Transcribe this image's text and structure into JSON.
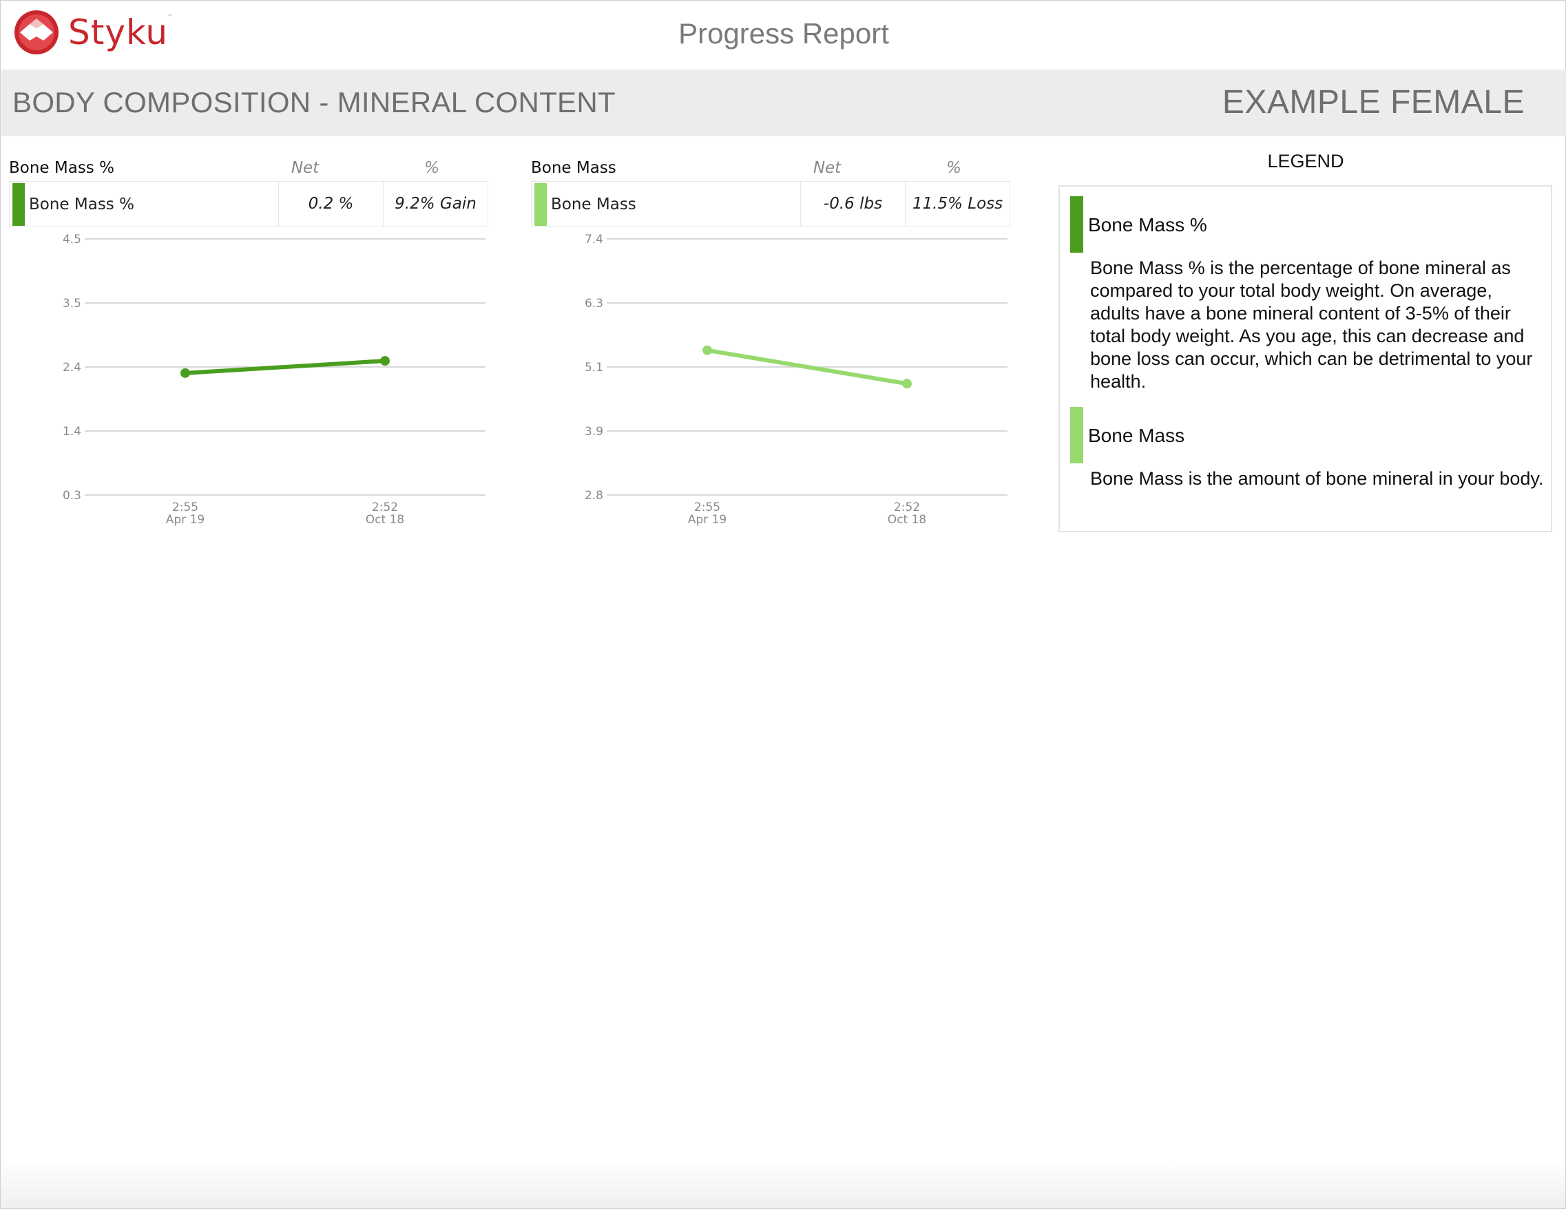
{
  "header": {
    "logo_text": "Styku",
    "logo_tm": "™",
    "report_title": "Progress Report"
  },
  "section": {
    "title": "BODY COMPOSITION - MINERAL CONTENT",
    "person": "EXAMPLE FEMALE"
  },
  "colors": {
    "bone_mass_pct": "#4a9e1e",
    "bone_mass": "#96da6e",
    "brand_red": "#c8262c",
    "grid": "#cccccc",
    "tick": "#8a8a8a"
  },
  "panels": [
    {
      "title": "Bone Mass %",
      "net_header": "Net",
      "pct_header": "%",
      "row_label": "Bone Mass %",
      "net_value": "0.2 %",
      "pct_value": "9.2% Gain"
    },
    {
      "title": "Bone Mass",
      "net_header": "Net",
      "pct_header": "%",
      "row_label": "Bone Mass",
      "net_value": "-0.6 lbs",
      "pct_value": "11.5% Loss"
    }
  ],
  "chart_data": [
    {
      "type": "line",
      "yticks": [
        "4.5",
        "3.5",
        "2.4",
        "1.4",
        "0.3"
      ],
      "ylim": [
        0.3,
        4.5
      ],
      "x": [
        [
          "2:55",
          "Apr 19"
        ],
        [
          "2:52",
          "Oct 18"
        ]
      ],
      "series": [
        {
          "name": "Bone Mass %",
          "values": [
            2.3,
            2.5
          ]
        }
      ]
    },
    {
      "type": "line",
      "yticks": [
        "7.4",
        "6.3",
        "5.1",
        "3.9",
        "2.8"
      ],
      "ylim": [
        2.8,
        7.4
      ],
      "x": [
        [
          "2:55",
          "Apr 19"
        ],
        [
          "2:52",
          "Oct 18"
        ]
      ],
      "series": [
        {
          "name": "Bone Mass",
          "values": [
            5.4,
            4.8
          ]
        }
      ]
    }
  ],
  "legend": {
    "title": "LEGEND",
    "items": [
      {
        "name": "Bone Mass %",
        "description": "Bone Mass % is the percentage of bone mineral as compared to your total body weight. On average, adults have a bone mineral content of 3-5% of their total body weight. As you age, this can decrease and bone loss can occur, which can be detrimental to your health."
      },
      {
        "name": "Bone Mass",
        "description": "Bone Mass is the amount of bone mineral in your body."
      }
    ]
  }
}
